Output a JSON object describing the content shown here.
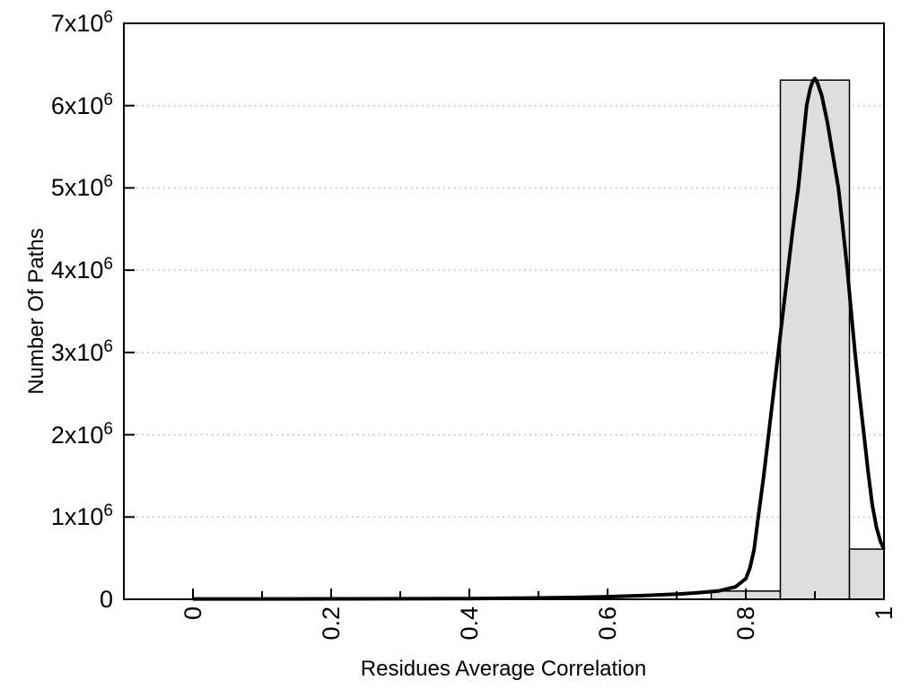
{
  "chart_data": {
    "type": "bar",
    "subtype": "histogram_with_fitted_curve",
    "title": "",
    "xlabel": "Residues Average Correlation",
    "ylabel": "Number Of Paths",
    "xlim": [
      -0.1,
      1.0
    ],
    "ylim": [
      0,
      7000000
    ],
    "grid": "horizontal-dotted",
    "legend": "none",
    "x_major_ticks": [
      {
        "value": 0,
        "label": "0"
      },
      {
        "value": 0.2,
        "label": "0.2"
      },
      {
        "value": 0.4,
        "label": "0.4"
      },
      {
        "value": 0.6,
        "label": "0.6"
      },
      {
        "value": 0.8,
        "label": "0.8"
      },
      {
        "value": 1,
        "label": "1"
      }
    ],
    "x_minor_ticks": [
      0.1,
      0.3,
      0.5,
      0.7,
      0.9
    ],
    "y_ticks": [
      {
        "value": 0,
        "label": "0"
      },
      {
        "value": 1000000,
        "label": "1x10^6"
      },
      {
        "value": 2000000,
        "label": "2x10^6"
      },
      {
        "value": 3000000,
        "label": "3x10^6"
      },
      {
        "value": 4000000,
        "label": "4x10^6"
      },
      {
        "value": 5000000,
        "label": "5x10^6"
      },
      {
        "value": 6000000,
        "label": "6x10^6"
      },
      {
        "value": 7000000,
        "label": "7x10^6"
      }
    ],
    "bars": [
      {
        "x_start": 0.75,
        "x_end": 0.85,
        "count": 100000
      },
      {
        "x_start": 0.85,
        "x_end": 0.95,
        "count": 6310000
      },
      {
        "x_start": 0.95,
        "x_end": 1.0,
        "count": 610000
      }
    ],
    "curve": {
      "name": "fitted-distribution-curve",
      "peak_x": 0.9,
      "peak_count": 6330000,
      "points": [
        [
          0.0,
          4000
        ],
        [
          0.1,
          4000
        ],
        [
          0.2,
          5000
        ],
        [
          0.3,
          6000
        ],
        [
          0.4,
          9000
        ],
        [
          0.5,
          16000
        ],
        [
          0.55,
          22000
        ],
        [
          0.6,
          32000
        ],
        [
          0.65,
          45000
        ],
        [
          0.7,
          62000
        ],
        [
          0.73,
          78000
        ],
        [
          0.76,
          100000
        ],
        [
          0.785,
          150000
        ],
        [
          0.8,
          250000
        ],
        [
          0.806,
          380000
        ],
        [
          0.812,
          600000
        ],
        [
          0.818,
          1000000
        ],
        [
          0.826,
          1500000
        ],
        [
          0.833,
          2000000
        ],
        [
          0.84,
          2500000
        ],
        [
          0.847,
          3000000
        ],
        [
          0.854,
          3500000
        ],
        [
          0.861,
          4000000
        ],
        [
          0.868,
          4500000
        ],
        [
          0.876,
          5000000
        ],
        [
          0.882,
          5500000
        ],
        [
          0.888,
          6000000
        ],
        [
          0.893,
          6200000
        ],
        [
          0.897,
          6300000
        ],
        [
          0.9,
          6330000
        ],
        [
          0.904,
          6270000
        ],
        [
          0.91,
          6120000
        ],
        [
          0.918,
          5800000
        ],
        [
          0.926,
          5400000
        ],
        [
          0.934,
          5000000
        ],
        [
          0.94,
          4550000
        ],
        [
          0.947,
          4000000
        ],
        [
          0.953,
          3450000
        ],
        [
          0.958,
          3000000
        ],
        [
          0.965,
          2450000
        ],
        [
          0.971,
          2000000
        ],
        [
          0.977,
          1550000
        ],
        [
          0.983,
          1150000
        ],
        [
          0.989,
          880000
        ],
        [
          0.995,
          700000
        ],
        [
          1.0,
          610000
        ]
      ]
    },
    "colors": {
      "bar_fill": "#dedede",
      "bar_stroke": "#000000",
      "curve": "#000000",
      "grid": "#b3b3b3",
      "frame": "#000000",
      "text": "#000000"
    }
  }
}
